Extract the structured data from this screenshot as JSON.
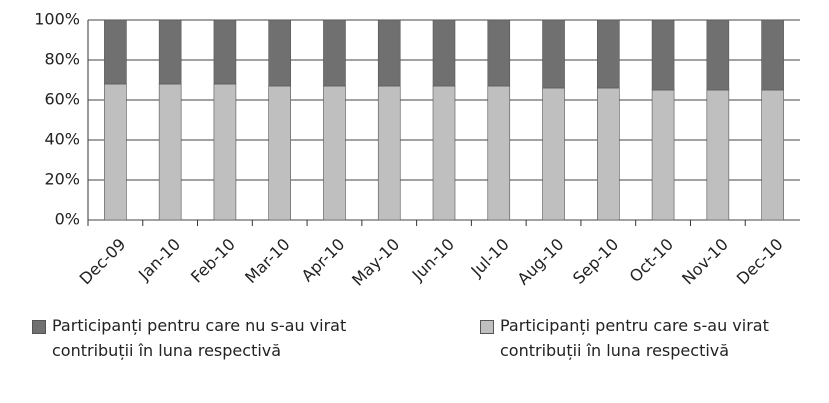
{
  "chart_data": {
    "type": "stacked_bar",
    "categories": [
      "Dec-09",
      "Jan-10",
      "Feb-10",
      "Mar-10",
      "Apr-10",
      "May-10",
      "Jun-10",
      "Jul-10",
      "Aug-10",
      "Sep-10",
      "Oct-10",
      "Nov-10",
      "Dec-10"
    ],
    "series": [
      {
        "name": "Participanți pentru care nu s-au virat contribuții în luna respectivă",
        "color": "#707070",
        "values": [
          32,
          32,
          32,
          33,
          33,
          33,
          33,
          33,
          34,
          34,
          35,
          35,
          35
        ]
      },
      {
        "name": "Participanți pentru care s-au virat contribuții în luna respectivă",
        "color": "#bfbfbf",
        "values": [
          68,
          68,
          68,
          67,
          67,
          67,
          67,
          67,
          66,
          66,
          65,
          65,
          65
        ]
      }
    ],
    "ylim": [
      0,
      100
    ],
    "yticks": [
      {
        "value": 0,
        "label": "0%"
      },
      {
        "value": 20,
        "label": "20%"
      },
      {
        "value": 40,
        "label": "40%"
      },
      {
        "value": 60,
        "label": "60%"
      },
      {
        "value": 80,
        "label": "80%"
      },
      {
        "value": 100,
        "label": "100%"
      }
    ],
    "grid": true,
    "legend": "bottom"
  }
}
